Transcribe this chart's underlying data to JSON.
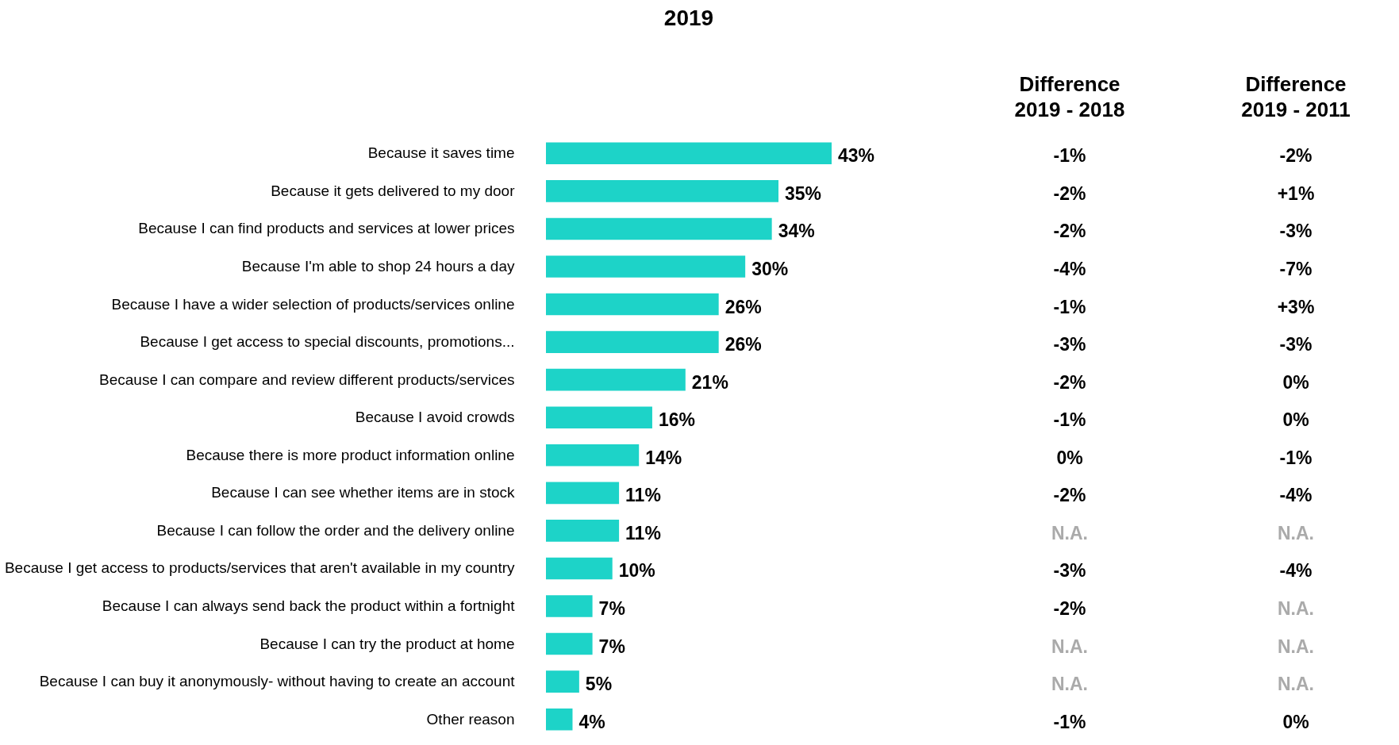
{
  "chart_data": {
    "type": "bar",
    "orientation": "horizontal",
    "title": "2019",
    "tick_labels": "y",
    "categories": [
      "Because it saves time",
      "Because it gets delivered to my door",
      "Because I can find products and services at lower prices",
      "Because I'm able to shop 24 hours a day",
      "Because I have a wider selection of products/services online",
      "Because I get access to special discounts, promotions...",
      "Because I can compare and review different products/services",
      "Because I avoid crowds",
      "Because there is more product information online",
      "Because I can see whether items are in stock",
      "Because I can follow the order and the delivery online",
      "Because I get access to products/services that aren't available in my country",
      "Because I can always send back the product within a fortnight",
      "Because I can try the product at home",
      "Because I can buy it anonymously- without having to create an account",
      "Other reason"
    ],
    "values": [
      43,
      35,
      34,
      30,
      26,
      26,
      21,
      16,
      14,
      11,
      11,
      10,
      7,
      7,
      5,
      4
    ],
    "value_labels": [
      "43%",
      "35%",
      "34%",
      "30%",
      "26%",
      "26%",
      "21%",
      "16%",
      "14%",
      "11%",
      "11%",
      "10%",
      "7%",
      "7%",
      "5%",
      "4%"
    ],
    "color": "#1dd3c8",
    "annotations": [
      "Difference 2019 - 2018",
      "-1%",
      "-2%",
      "-2%",
      "-4%",
      "-1%",
      "-3%",
      "-2%",
      "-1%",
      "0%",
      "-2%",
      "N.A.",
      "-3%",
      "-2%",
      "N.A.",
      "N.A.",
      "-1%",
      "Difference 2019 - 2011",
      "-2%",
      "+1%",
      "-3%",
      "-7%",
      "+3%",
      "-3%",
      "0%",
      "0%",
      "-1%",
      "-4%",
      "N.A.",
      "-4%",
      "N.A.",
      "N.A.",
      "N.A.",
      "0%"
    ]
  }
}
